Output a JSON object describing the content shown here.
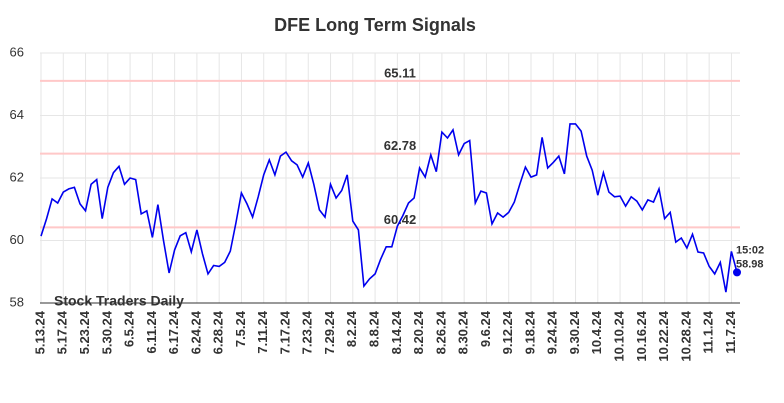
{
  "chart_data": {
    "type": "line",
    "title": "DFE Long Term Signals",
    "watermark": "Stock Traders Daily",
    "categories": [
      "5.13.24",
      null,
      null,
      null,
      "5.17.24",
      null,
      null,
      null,
      "5.23.24",
      null,
      null,
      null,
      "5.30.24",
      null,
      null,
      null,
      "6.5.24",
      null,
      null,
      null,
      "6.11.24",
      null,
      null,
      null,
      "6.17.24",
      null,
      null,
      null,
      "6.24.24",
      null,
      null,
      null,
      "6.28.24",
      null,
      null,
      null,
      "7.5.24",
      null,
      null,
      null,
      "7.11.24",
      null,
      null,
      null,
      "7.17.24",
      null,
      null,
      null,
      "7.23.24",
      null,
      null,
      null,
      "7.29.24",
      null,
      null,
      null,
      "8.2.24",
      null,
      null,
      null,
      "8.8.24",
      null,
      null,
      null,
      "8.14.24",
      null,
      null,
      null,
      "8.20.24",
      null,
      null,
      null,
      "8.26.24",
      null,
      null,
      null,
      "8.30.24",
      null,
      null,
      null,
      "9.6.24",
      null,
      null,
      null,
      "9.12.24",
      null,
      null,
      null,
      "9.18.24",
      null,
      null,
      null,
      "9.24.24",
      null,
      null,
      null,
      "9.30.24",
      null,
      null,
      null,
      "10.4.24",
      null,
      null,
      null,
      "10.10.24",
      null,
      null,
      null,
      "10.16.24",
      null,
      null,
      null,
      "10.22.24",
      null,
      null,
      null,
      "10.28.24",
      null,
      null,
      null,
      "11.1.24",
      null,
      null,
      null,
      "11.7.24",
      null
    ],
    "values": [
      60.14,
      60.7,
      61.33,
      61.2,
      61.55,
      61.65,
      61.7,
      61.17,
      60.95,
      61.8,
      61.95,
      60.7,
      61.7,
      62.17,
      62.37,
      61.8,
      62.0,
      61.95,
      60.85,
      60.95,
      60.1,
      61.15,
      60.0,
      58.96,
      59.7,
      60.15,
      60.25,
      59.64,
      60.34,
      59.57,
      58.93,
      59.2,
      59.17,
      59.3,
      59.66,
      60.56,
      61.52,
      61.17,
      60.75,
      61.4,
      62.1,
      62.58,
      62.1,
      62.7,
      62.83,
      62.55,
      62.42,
      62.03,
      62.48,
      61.8,
      60.98,
      60.75,
      61.8,
      61.36,
      61.6,
      62.1,
      60.62,
      60.34,
      58.54,
      58.77,
      58.93,
      59.4,
      59.8,
      59.8,
      60.46,
      60.8,
      61.2,
      61.36,
      62.32,
      62.03,
      62.74,
      62.2,
      63.47,
      63.28,
      63.54,
      62.74,
      63.1,
      63.2,
      61.2,
      61.58,
      61.52,
      60.53,
      60.88,
      60.75,
      60.9,
      61.23,
      61.8,
      62.35,
      62.03,
      62.1,
      63.3,
      62.32,
      62.5,
      62.7,
      62.13,
      63.73,
      63.73,
      63.5,
      62.7,
      62.25,
      61.45,
      62.17,
      61.55,
      61.4,
      61.42,
      61.1,
      61.4,
      61.26,
      60.98,
      61.3,
      61.23,
      61.65,
      60.7,
      60.9,
      59.95,
      60.08,
      59.76,
      60.2,
      59.63,
      59.6,
      59.17,
      58.93,
      59.3,
      58.35,
      59.65,
      58.98
    ],
    "color": "#0000ee",
    "last_time": "15:02",
    "levels": [
      65.11,
      62.78,
      60.42
    ],
    "level_color": "#ffc8c8",
    "level_label_color": "#8b0000",
    "ylim": [
      58,
      66
    ],
    "yticks": [
      58,
      60,
      62,
      64,
      66
    ],
    "grid": true
  }
}
